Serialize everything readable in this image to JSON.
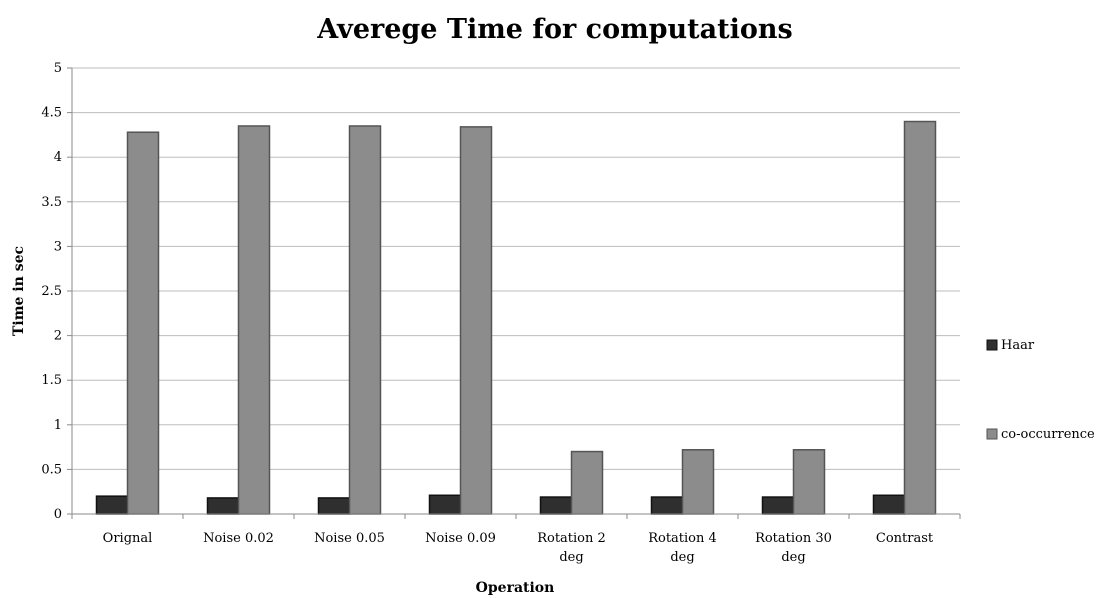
{
  "chart_data": {
    "type": "bar",
    "title": "Averege Time for computations",
    "xlabel": "Operation",
    "ylabel": "Time in sec",
    "categories": [
      "Orignal",
      "Noise 0.02",
      "Noise 0.05",
      "Noise 0.09",
      "Rotation 2 deg",
      "Rotation 4 deg",
      "Rotation 30 deg",
      "Contrast"
    ],
    "series": [
      {
        "name": "Haar",
        "values": [
          0.2,
          0.18,
          0.18,
          0.21,
          0.19,
          0.19,
          0.19,
          0.21
        ],
        "color": "#2f2f2f"
      },
      {
        "name": "co-occurrence",
        "values": [
          4.28,
          4.35,
          4.35,
          4.34,
          0.7,
          0.72,
          0.72,
          4.4
        ],
        "color": "#8c8c8c"
      }
    ],
    "ylim": [
      0,
      5
    ],
    "yticks": [
      0,
      0.5,
      1,
      1.5,
      2,
      2.5,
      3,
      3.5,
      4,
      4.5,
      5
    ],
    "grid": true,
    "legend": "right"
  }
}
